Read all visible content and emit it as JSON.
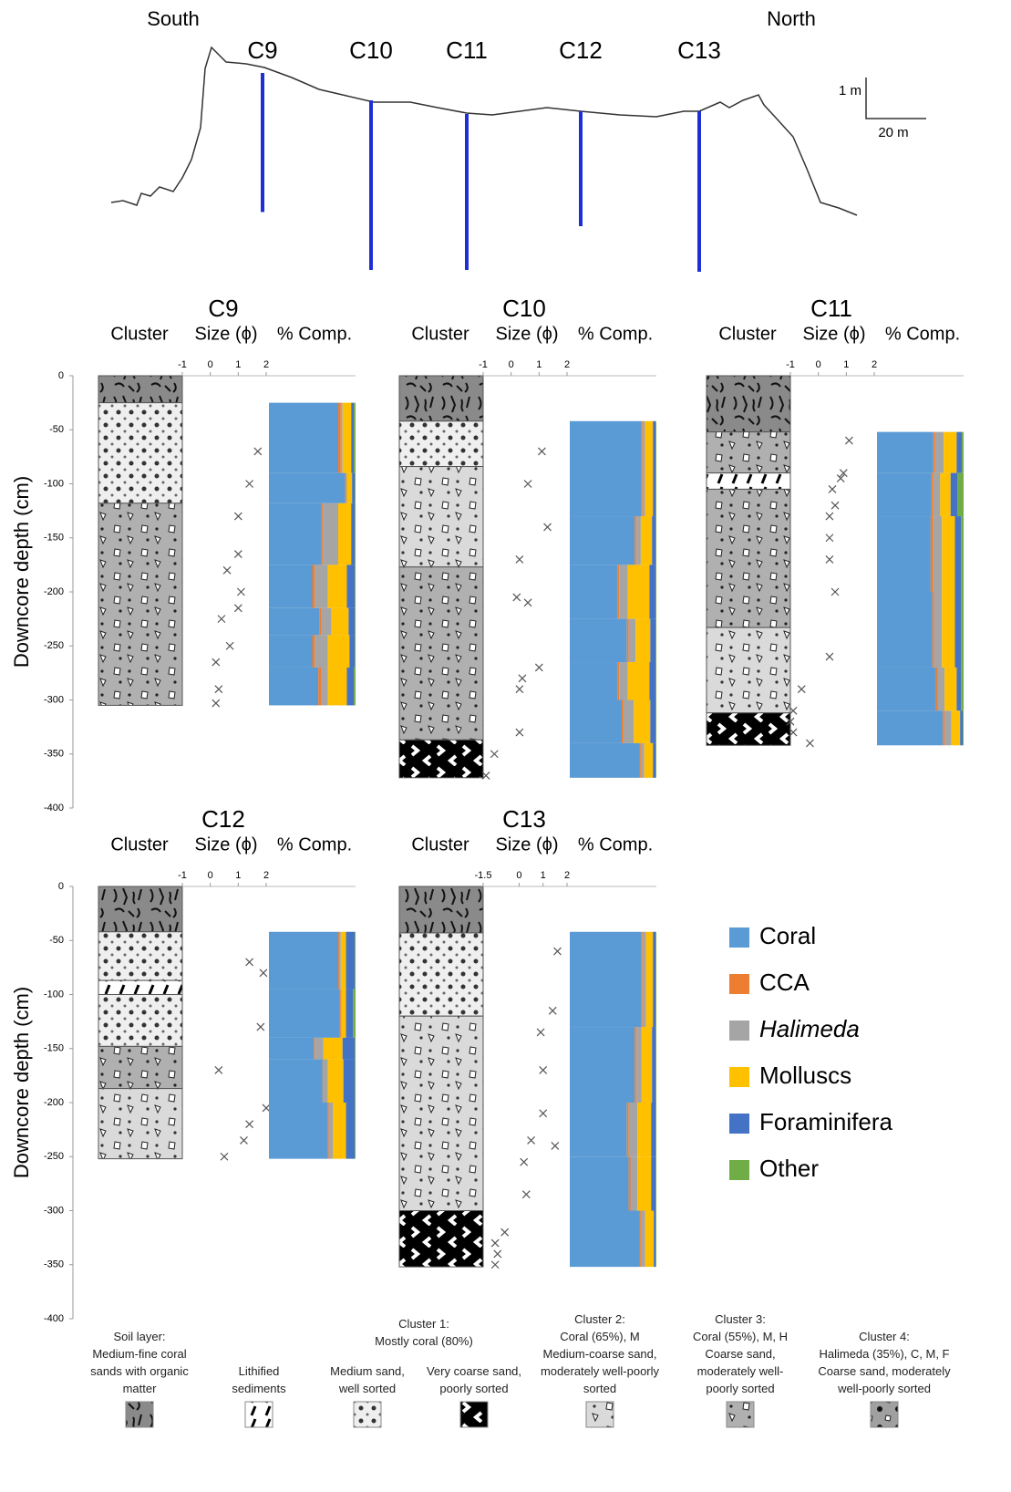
{
  "profile": {
    "south": "South",
    "north": "North",
    "scale_vertical": "1 m",
    "scale_horizontal": "20 m"
  },
  "column_headers": [
    "Cluster",
    "Size (ϕ)",
    "% Comp."
  ],
  "depth_axis": {
    "label": "Downcore depth (cm)",
    "ylim": [
      0,
      -400
    ],
    "yticks": [
      0,
      -50,
      -100,
      -150,
      -200,
      -250,
      -300,
      -350,
      -400
    ]
  },
  "comp_xlim": [
    0,
    100
  ],
  "components": [
    {
      "name": "Coral",
      "color": "#5b9bd5"
    },
    {
      "name": "CCA",
      "color": "#ed7d31"
    },
    {
      "name": "Halimeda",
      "color": "#a5a5a5",
      "italic": true
    },
    {
      "name": "Molluscs",
      "color": "#ffc000"
    },
    {
      "name": "Foraminifera",
      "color": "#4472c4"
    },
    {
      "name": "Other",
      "color": "#70ad47"
    }
  ],
  "cores": [
    {
      "name": "C9",
      "size_xlim": [
        -1,
        2
      ],
      "size_ticks": [
        -1,
        0,
        1,
        2
      ],
      "layers": [
        {
          "top": 0,
          "bottom": -25,
          "pattern": "soil"
        },
        {
          "top": -25,
          "bottom": -118,
          "pattern": "c1m"
        },
        {
          "top": -118,
          "bottom": -305,
          "pattern": "c3"
        }
      ],
      "grain_size": {
        "depth": [
          -70,
          -100,
          -130,
          -165,
          -180,
          -200,
          -215,
          -225,
          -250,
          -265,
          -290,
          -303
        ],
        "phi": [
          1.7,
          1.4,
          1.0,
          1.0,
          0.6,
          1.1,
          1.0,
          0.4,
          0.7,
          0.2,
          0.3,
          0.2
        ]
      },
      "composition": [
        {
          "top": -25,
          "bottom": -90,
          "values": [
            80,
            3,
            2,
            10,
            3,
            2
          ]
        },
        {
          "top": -90,
          "bottom": -118,
          "values": [
            88,
            1,
            1,
            6,
            3,
            1
          ]
        },
        {
          "top": -118,
          "bottom": -175,
          "values": [
            60,
            2,
            18,
            15,
            4,
            1
          ]
        },
        {
          "top": -175,
          "bottom": -215,
          "values": [
            50,
            3,
            15,
            22,
            9,
            1
          ]
        },
        {
          "top": -215,
          "bottom": -240,
          "values": [
            58,
            2,
            12,
            20,
            7,
            1
          ]
        },
        {
          "top": -240,
          "bottom": -270,
          "values": [
            50,
            3,
            15,
            25,
            6,
            1
          ]
        },
        {
          "top": -270,
          "bottom": -305,
          "values": [
            57,
            3,
            8,
            22,
            8,
            2
          ]
        }
      ]
    },
    {
      "name": "C10",
      "size_xlim": [
        -1,
        2
      ],
      "size_ticks": [
        -1,
        0,
        1,
        2
      ],
      "layers": [
        {
          "top": 0,
          "bottom": -42,
          "pattern": "soil"
        },
        {
          "top": -42,
          "bottom": -84,
          "pattern": "c1m"
        },
        {
          "top": -84,
          "bottom": -177,
          "pattern": "c2"
        },
        {
          "top": -177,
          "bottom": -337,
          "pattern": "c3"
        },
        {
          "top": -337,
          "bottom": -372,
          "pattern": "c1vc"
        }
      ],
      "grain_size": {
        "depth": [
          -70,
          -100,
          -140,
          -170,
          -205,
          -210,
          -270,
          -280,
          -290,
          -330,
          -350,
          -370
        ],
        "phi": [
          1.1,
          0.6,
          1.3,
          0.3,
          0.2,
          0.6,
          1.0,
          0.4,
          0.3,
          0.3,
          -0.6,
          -0.9
        ]
      },
      "composition": [
        {
          "top": -42,
          "bottom": -130,
          "values": [
            83,
            1,
            3,
            9,
            3,
            1
          ]
        },
        {
          "top": -130,
          "bottom": -175,
          "values": [
            75,
            2,
            5,
            13,
            4,
            1
          ]
        },
        {
          "top": -175,
          "bottom": -225,
          "values": [
            55,
            2,
            10,
            25,
            7,
            1
          ]
        },
        {
          "top": -225,
          "bottom": -265,
          "values": [
            66,
            2,
            8,
            17,
            6,
            1
          ]
        },
        {
          "top": -265,
          "bottom": -300,
          "values": [
            55,
            2,
            10,
            25,
            7,
            1
          ]
        },
        {
          "top": -300,
          "bottom": -340,
          "values": [
            60,
            2,
            12,
            19,
            6,
            1
          ]
        },
        {
          "top": -340,
          "bottom": -372,
          "values": [
            80,
            2,
            4,
            10,
            3,
            1
          ]
        }
      ]
    },
    {
      "name": "C11",
      "size_xlim": [
        -1,
        2
      ],
      "size_ticks": [
        -1,
        0,
        1,
        2
      ],
      "layers": [
        {
          "top": 0,
          "bottom": -52,
          "pattern": "soil"
        },
        {
          "top": -52,
          "bottom": -90,
          "pattern": "c3"
        },
        {
          "top": -90,
          "bottom": -105,
          "pattern": "lith"
        },
        {
          "top": -105,
          "bottom": -233,
          "pattern": "c3"
        },
        {
          "top": -233,
          "bottom": -312,
          "pattern": "c2"
        },
        {
          "top": -312,
          "bottom": -342,
          "pattern": "c1vc"
        }
      ],
      "grain_size": {
        "depth": [
          -60,
          -90,
          -95,
          -105,
          -120,
          -130,
          -150,
          -170,
          -200,
          -260,
          -290,
          -310,
          -320,
          -330,
          -340
        ],
        "phi": [
          1.1,
          0.9,
          0.8,
          0.5,
          0.6,
          0.4,
          0.4,
          0.4,
          0.6,
          0.4,
          -0.6,
          -0.9,
          -1.0,
          -0.9,
          -0.3
        ]
      },
      "composition": [
        {
          "top": -52,
          "bottom": -90,
          "values": [
            65,
            2,
            10,
            15,
            6,
            2
          ]
        },
        {
          "top": -90,
          "bottom": -130,
          "values": [
            63,
            2,
            8,
            12,
            8,
            7
          ]
        },
        {
          "top": -130,
          "bottom": -200,
          "values": [
            62,
            3,
            10,
            15,
            7,
            3
          ]
        },
        {
          "top": -200,
          "bottom": -270,
          "values": [
            64,
            2,
            9,
            15,
            7,
            3
          ]
        },
        {
          "top": -270,
          "bottom": -310,
          "values": [
            68,
            2,
            8,
            14,
            5,
            3
          ]
        },
        {
          "top": -310,
          "bottom": -342,
          "values": [
            76,
            2,
            8,
            10,
            3,
            1
          ]
        }
      ]
    },
    {
      "name": "C12",
      "size_xlim": [
        -1,
        2
      ],
      "size_ticks": [
        -1,
        0,
        1,
        2
      ],
      "layers": [
        {
          "top": 0,
          "bottom": -42,
          "pattern": "soil"
        },
        {
          "top": -42,
          "bottom": -87,
          "pattern": "c1m"
        },
        {
          "top": -87,
          "bottom": -100,
          "pattern": "lith"
        },
        {
          "top": -100,
          "bottom": -148,
          "pattern": "c1m"
        },
        {
          "top": -148,
          "bottom": -187,
          "pattern": "c3"
        },
        {
          "top": -187,
          "bottom": -252,
          "pattern": "c2"
        }
      ],
      "grain_size": {
        "depth": [
          -70,
          -80,
          -130,
          -170,
          -205,
          -220,
          -235,
          -250
        ],
        "phi": [
          1.4,
          1.9,
          1.8,
          0.3,
          2.0,
          1.4,
          1.2,
          0.5
        ]
      },
      "composition": [
        {
          "top": -42,
          "bottom": -95,
          "values": [
            80,
            1,
            2,
            6,
            10,
            1
          ]
        },
        {
          "top": -95,
          "bottom": -140,
          "values": [
            82,
            1,
            1,
            5,
            8,
            3
          ]
        },
        {
          "top": -140,
          "bottom": -160,
          "values": [
            52,
            1,
            10,
            22,
            14,
            1
          ]
        },
        {
          "top": -160,
          "bottom": -200,
          "values": [
            62,
            1,
            5,
            18,
            13,
            1
          ]
        },
        {
          "top": -200,
          "bottom": -252,
          "values": [
            68,
            1,
            5,
            15,
            10,
            1
          ]
        }
      ]
    },
    {
      "name": "C13",
      "size_xlim": [
        -1.5,
        2
      ],
      "size_ticks": [
        -1.5,
        0,
        1,
        2
      ],
      "layers": [
        {
          "top": 0,
          "bottom": -43,
          "pattern": "soil"
        },
        {
          "top": -43,
          "bottom": -120,
          "pattern": "c1m"
        },
        {
          "top": -120,
          "bottom": -300,
          "pattern": "c2"
        },
        {
          "top": -300,
          "bottom": -352,
          "pattern": "c1vc"
        }
      ],
      "grain_size": {
        "depth": [
          -60,
          -115,
          -135,
          -170,
          -210,
          -235,
          -240,
          -255,
          -285,
          -320,
          -330,
          -340,
          -350
        ],
        "phi": [
          1.6,
          1.4,
          0.9,
          1.0,
          1.0,
          0.5,
          1.5,
          0.2,
          0.3,
          -0.6,
          -1.0,
          -0.9,
          -1.0
        ]
      },
      "composition": [
        {
          "top": -42,
          "bottom": -130,
          "values": [
            83,
            1,
            4,
            8,
            3,
            1
          ]
        },
        {
          "top": -130,
          "bottom": -200,
          "values": [
            75,
            2,
            6,
            12,
            4,
            1
          ]
        },
        {
          "top": -200,
          "bottom": -250,
          "values": [
            66,
            2,
            10,
            16,
            5,
            1
          ]
        },
        {
          "top": -250,
          "bottom": -300,
          "values": [
            68,
            2,
            8,
            16,
            5,
            1
          ]
        },
        {
          "top": -300,
          "bottom": -352,
          "values": [
            80,
            2,
            5,
            10,
            2,
            1
          ]
        }
      ]
    }
  ],
  "key": {
    "cluster1_title": "Cluster 1:",
    "cluster1_subtitle": "Mostly coral (80%)",
    "entries": [
      {
        "title": "Soil layer:",
        "text": "Medium-fine coral sands with organic matter",
        "pattern": "soil"
      },
      {
        "text": "Lithified sediments",
        "pattern": "lith"
      },
      {
        "text": "Medium sand, well sorted",
        "pattern": "c1m"
      },
      {
        "text": "Very coarse sand, poorly sorted",
        "pattern": "c1vc"
      },
      {
        "title": "Cluster 2:",
        "subtitle": "Coral (65%), M",
        "text": "Medium-coarse sand, moderately well-poorly sorted",
        "pattern": "c2"
      },
      {
        "title": "Cluster 3:",
        "subtitle": "Coral (55%), M, H",
        "text": "Coarse sand, moderately well-poorly sorted",
        "pattern": "c3"
      },
      {
        "title": "Cluster 4:",
        "subtitle": "Halimeda (35%), C, M, F",
        "text": "Coarse sand, moderately well-poorly sorted",
        "pattern": "c4"
      }
    ]
  }
}
